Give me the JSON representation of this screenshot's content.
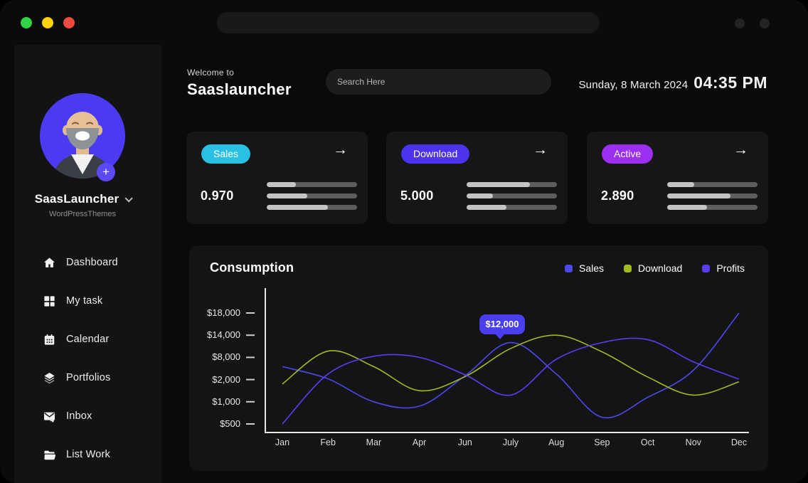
{
  "colors": {
    "traffic_green": "#2fd747",
    "traffic_yellow": "#fdd10e",
    "traffic_red": "#ec4b43",
    "bar_fill": "#c4c4c4",
    "bar_track": "#5e5e5e",
    "avatar_bg": "#4a3bf2",
    "tooltip_bg": "#4a3ff0"
  },
  "sidebar": {
    "profile": {
      "name": "SaasLauncher",
      "subtitle": "WordPressThemes",
      "add_label": "+"
    },
    "items": [
      {
        "icon": "home-icon",
        "label": "Dashboard"
      },
      {
        "icon": "grid-icon",
        "label": "My task"
      },
      {
        "icon": "calendar-icon",
        "label": "Calendar"
      },
      {
        "icon": "layers-icon",
        "label": "Portfolios"
      },
      {
        "icon": "inbox-icon",
        "label": "Inbox"
      },
      {
        "icon": "folder-icon",
        "label": "List Work"
      }
    ]
  },
  "header": {
    "welcome": "Welcome to",
    "title": "Saaslauncher",
    "search_placeholder": "Search Here",
    "date": "Sunday, 8 March 2024",
    "time": "04:35 PM"
  },
  "cards": [
    {
      "label": "Sales",
      "pill_color": "#2ac0e4",
      "value": "0.970",
      "arrow": "→",
      "bars": [
        32,
        45,
        68
      ]
    },
    {
      "label": "Download",
      "pill_color": "#4b33f0",
      "value": "5.000",
      "arrow": "→",
      "bars": [
        70,
        29,
        44
      ]
    },
    {
      "label": "Active",
      "pill_color": "#9c2ff2",
      "value": "2.890",
      "arrow": "→",
      "bars": [
        30,
        70,
        44
      ]
    }
  ],
  "chart_data": {
    "type": "line",
    "title": "Consumption",
    "x_labels": [
      "Jan",
      "Feb",
      "Mar",
      "Apr",
      "Jun",
      "July",
      "Aug",
      "Sep",
      "Oct",
      "Nov",
      "Dec"
    ],
    "y_tick_labels": [
      "$18,000",
      "$14,000",
      "$8,000",
      "$2,000",
      "$1,000",
      "$500"
    ],
    "y_tick_values": [
      18000,
      14000,
      8000,
      2000,
      1000,
      500
    ],
    "y_scale_note": "tick labels are equally spaced (non-linear value scale)",
    "grid": false,
    "legend_position": "top-right",
    "series": [
      {
        "name": "Sales",
        "color": "#4c49ef",
        "values": [
          5500,
          2200,
          1000,
          900,
          3000,
          12000,
          3500,
          650,
          1200,
          4500,
          18000
        ]
      },
      {
        "name": "Download",
        "color": "#a2b91f",
        "values": [
          1800,
          9700,
          5500,
          1500,
          2800,
          10400,
          14000,
          9500,
          2700,
          1300,
          1900
        ]
      },
      {
        "name": "Profits",
        "color": "#5a3df2",
        "values": [
          500,
          3500,
          8300,
          8000,
          3300,
          1300,
          7500,
          12000,
          12800,
          6800,
          2100
        ]
      }
    ],
    "tooltip": {
      "label": "$12,000",
      "series": "Sales",
      "x": "July",
      "value": 12000
    }
  }
}
